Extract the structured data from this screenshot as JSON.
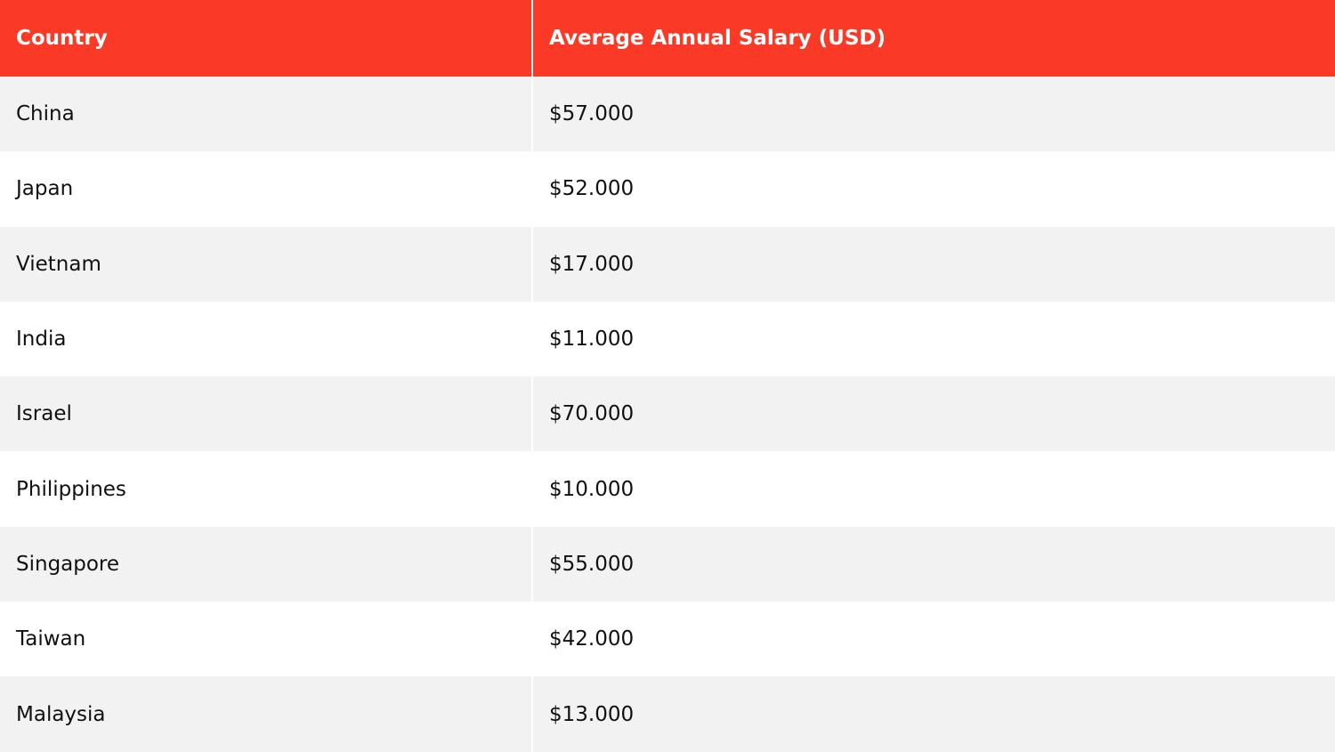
{
  "chart_data": {
    "type": "table",
    "header_color": "#fa3a26",
    "stripe_color": "#f2f2f2",
    "columns": [
      "Country",
      "Average Annual Salary (USD)"
    ],
    "rows": [
      [
        "China",
        "$57.000"
      ],
      [
        "Japan",
        "$52.000"
      ],
      [
        "Vietnam",
        "$17.000"
      ],
      [
        "India",
        "$11.000"
      ],
      [
        "Israel",
        "$70.000"
      ],
      [
        "Philippines",
        "$10.000"
      ],
      [
        "Singapore",
        "$55.000"
      ],
      [
        "Taiwan",
        "$42.000"
      ],
      [
        "Malaysia",
        "$13.000"
      ]
    ]
  }
}
